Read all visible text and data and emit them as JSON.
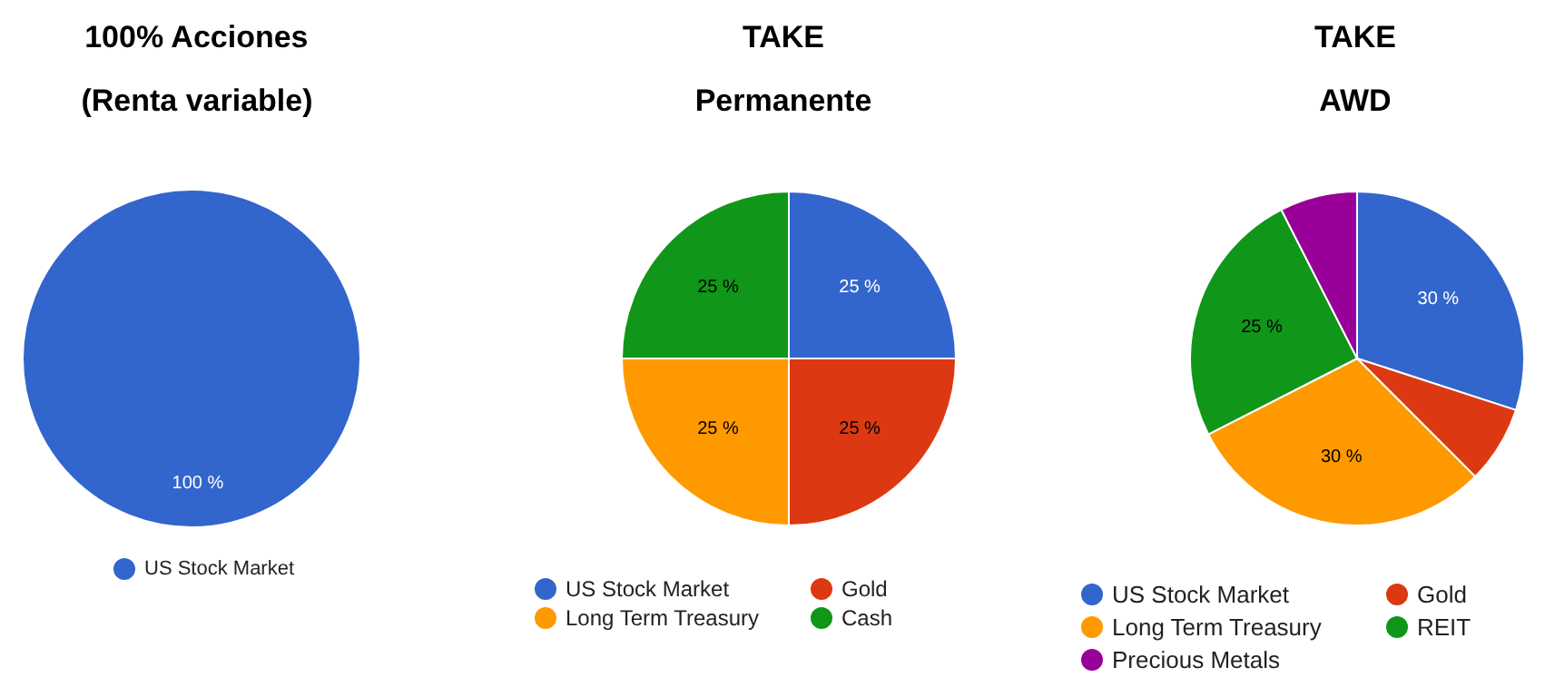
{
  "chart_data": [
    {
      "type": "pie",
      "title": "100% Acciones\n(Renta variable)",
      "categories": [
        "US Stock Market"
      ],
      "values": [
        100
      ],
      "colors": [
        "#3366cc"
      ],
      "value_labels": [
        "100 %"
      ],
      "legend": "bottom"
    },
    {
      "type": "pie",
      "title": "TAKE\nPermanente",
      "categories": [
        "US Stock Market",
        "Gold",
        "Long Term Treasury",
        "Cash"
      ],
      "values": [
        25,
        25,
        25,
        25
      ],
      "colors": [
        "#3366cc",
        "#dc3912",
        "#ff9900",
        "#109618"
      ],
      "value_labels": [
        "25 %",
        "25 %",
        "25 %",
        "25 %"
      ],
      "legend": "bottom"
    },
    {
      "type": "pie",
      "title": "TAKE\nAWD",
      "categories": [
        "US Stock Market",
        "Gold",
        "Long Term Treasury",
        "REIT",
        "Precious Metals"
      ],
      "values": [
        30,
        7.5,
        30,
        25,
        7.5
      ],
      "colors": [
        "#3366cc",
        "#dc3912",
        "#ff9900",
        "#109618",
        "#990099"
      ],
      "value_labels": [
        "30 %",
        null,
        "30 %",
        "25 %",
        null
      ],
      "legend": "bottom"
    }
  ]
}
